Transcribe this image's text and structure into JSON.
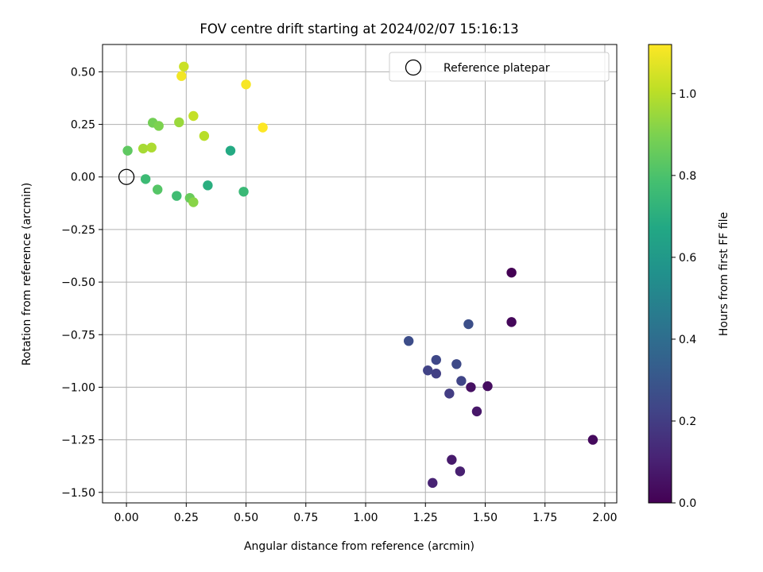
{
  "chart_data": {
    "type": "scatter",
    "title": "FOV centre drift starting at 2024/02/07 15:16:13",
    "xlabel": "Angular distance from reference (arcmin)",
    "ylabel": "Rotation from reference (arcmin)",
    "xlim": [
      -0.1,
      2.05
    ],
    "ylim": [
      -1.55,
      0.63
    ],
    "xticks": [
      0.0,
      0.25,
      0.5,
      0.75,
      1.0,
      1.25,
      1.5,
      1.75,
      2.0
    ],
    "xtick_labels": [
      "0.00",
      "0.25",
      "0.50",
      "0.75",
      "1.00",
      "1.25",
      "1.50",
      "1.75",
      "2.00"
    ],
    "yticks": [
      0.5,
      0.25,
      0.0,
      -0.25,
      -0.5,
      -0.75,
      -1.0,
      -1.25,
      -1.5
    ],
    "ytick_labels": [
      "0.50",
      "0.25",
      "0.00",
      "−0.25",
      "−0.50",
      "−0.75",
      "−1.00",
      "−1.25",
      "−1.50"
    ],
    "grid": true,
    "legend": {
      "position": "upper right",
      "entries": [
        "Reference platepar"
      ]
    },
    "reference_point": {
      "x": 0.0,
      "y": 0.0
    },
    "colorbar": {
      "label": "Hours from first FF file",
      "colormap": "viridis",
      "range": [
        0.0,
        1.12
      ],
      "ticks": [
        0.0,
        0.2,
        0.4,
        0.6,
        0.8,
        1.0
      ],
      "tick_labels": [
        "0.0",
        "0.2",
        "0.4",
        "0.6",
        "0.8",
        "1.0"
      ]
    },
    "points": [
      {
        "x": 1.61,
        "y": -0.455,
        "c": 0.0
      },
      {
        "x": 1.61,
        "y": -0.69,
        "c": 0.02
      },
      {
        "x": 1.95,
        "y": -1.25,
        "c": 0.03
      },
      {
        "x": 1.51,
        "y": -0.995,
        "c": 0.04
      },
      {
        "x": 1.44,
        "y": -1.0,
        "c": 0.05
      },
      {
        "x": 1.465,
        "y": -1.115,
        "c": 0.07
      },
      {
        "x": 1.36,
        "y": -1.345,
        "c": 0.08
      },
      {
        "x": 1.395,
        "y": -1.4,
        "c": 0.1
      },
      {
        "x": 1.28,
        "y": -1.455,
        "c": 0.11
      },
      {
        "x": 1.35,
        "y": -1.03,
        "c": 0.2
      },
      {
        "x": 1.295,
        "y": -0.935,
        "c": 0.21
      },
      {
        "x": 1.26,
        "y": -0.92,
        "c": 0.22
      },
      {
        "x": 1.4,
        "y": -0.97,
        "c": 0.23
      },
      {
        "x": 1.295,
        "y": -0.87,
        "c": 0.24
      },
      {
        "x": 1.38,
        "y": -0.89,
        "c": 0.25
      },
      {
        "x": 1.18,
        "y": -0.78,
        "c": 0.26
      },
      {
        "x": 1.43,
        "y": -0.7,
        "c": 0.27
      },
      {
        "x": 0.435,
        "y": 0.125,
        "c": 0.68
      },
      {
        "x": 0.34,
        "y": -0.04,
        "c": 0.7
      },
      {
        "x": 0.49,
        "y": -0.07,
        "c": 0.75
      },
      {
        "x": 0.08,
        "y": -0.01,
        "c": 0.76
      },
      {
        "x": 0.21,
        "y": -0.09,
        "c": 0.77
      },
      {
        "x": 0.13,
        "y": -0.06,
        "c": 0.82
      },
      {
        "x": 0.005,
        "y": 0.125,
        "c": 0.84
      },
      {
        "x": 0.265,
        "y": -0.1,
        "c": 0.86
      },
      {
        "x": 0.11,
        "y": 0.258,
        "c": 0.88
      },
      {
        "x": 0.135,
        "y": 0.243,
        "c": 0.9
      },
      {
        "x": 0.28,
        "y": -0.12,
        "c": 0.92
      },
      {
        "x": 0.22,
        "y": 0.26,
        "c": 0.95
      },
      {
        "x": 0.07,
        "y": 0.135,
        "c": 0.97
      },
      {
        "x": 0.105,
        "y": 0.14,
        "c": 0.98
      },
      {
        "x": 0.325,
        "y": 0.195,
        "c": 1.0
      },
      {
        "x": 0.28,
        "y": 0.29,
        "c": 1.02
      },
      {
        "x": 0.24,
        "y": 0.525,
        "c": 1.03
      },
      {
        "x": 0.23,
        "y": 0.48,
        "c": 1.1
      },
      {
        "x": 0.5,
        "y": 0.44,
        "c": 1.11
      },
      {
        "x": 0.57,
        "y": 0.235,
        "c": 1.12
      }
    ]
  }
}
